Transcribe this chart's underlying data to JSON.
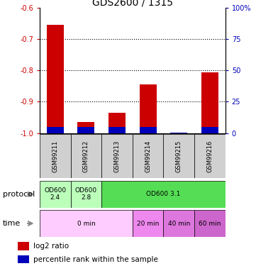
{
  "title": "GDS2600 / 1315",
  "samples": [
    "GSM99211",
    "GSM99212",
    "GSM99213",
    "GSM99214",
    "GSM99215",
    "GSM99216"
  ],
  "log2_ratio": [
    -0.655,
    -0.965,
    -0.935,
    -0.845,
    -1.0,
    -0.805
  ],
  "percentile_rank": [
    5,
    5,
    5,
    5,
    0.5,
    5
  ],
  "ylim_left": [
    -1.0,
    -0.6
  ],
  "ylim_right": [
    0,
    100
  ],
  "yticks_left": [
    -1.0,
    -0.9,
    -0.8,
    -0.7,
    -0.6
  ],
  "yticks_right": [
    0,
    25,
    50,
    75,
    100
  ],
  "bar_width": 0.55,
  "red_color": "#cc0000",
  "blue_color": "#0000bb",
  "prot_spans": [
    [
      0,
      1,
      "#bbffbb",
      "OD600\n2.4"
    ],
    [
      1,
      2,
      "#bbffbb",
      "OD600\n2.8"
    ],
    [
      2,
      6,
      "#55dd55",
      "OD600 3.1"
    ]
  ],
  "time_spans": [
    [
      0,
      3,
      "#ffccff",
      "0 min"
    ],
    [
      3,
      4,
      "#ee88ee",
      "20 min"
    ],
    [
      4,
      5,
      "#dd77dd",
      "40 min"
    ],
    [
      5,
      6,
      "#cc66cc",
      "60 min"
    ]
  ],
  "sample_bg": "#d0d0d0",
  "left_tick_color": "#cc0000",
  "right_tick_color": "#0000bb",
  "title_fontsize": 10,
  "tick_fontsize": 7,
  "sample_fontsize": 6,
  "label_fontsize": 8,
  "legend_fontsize": 7.5
}
